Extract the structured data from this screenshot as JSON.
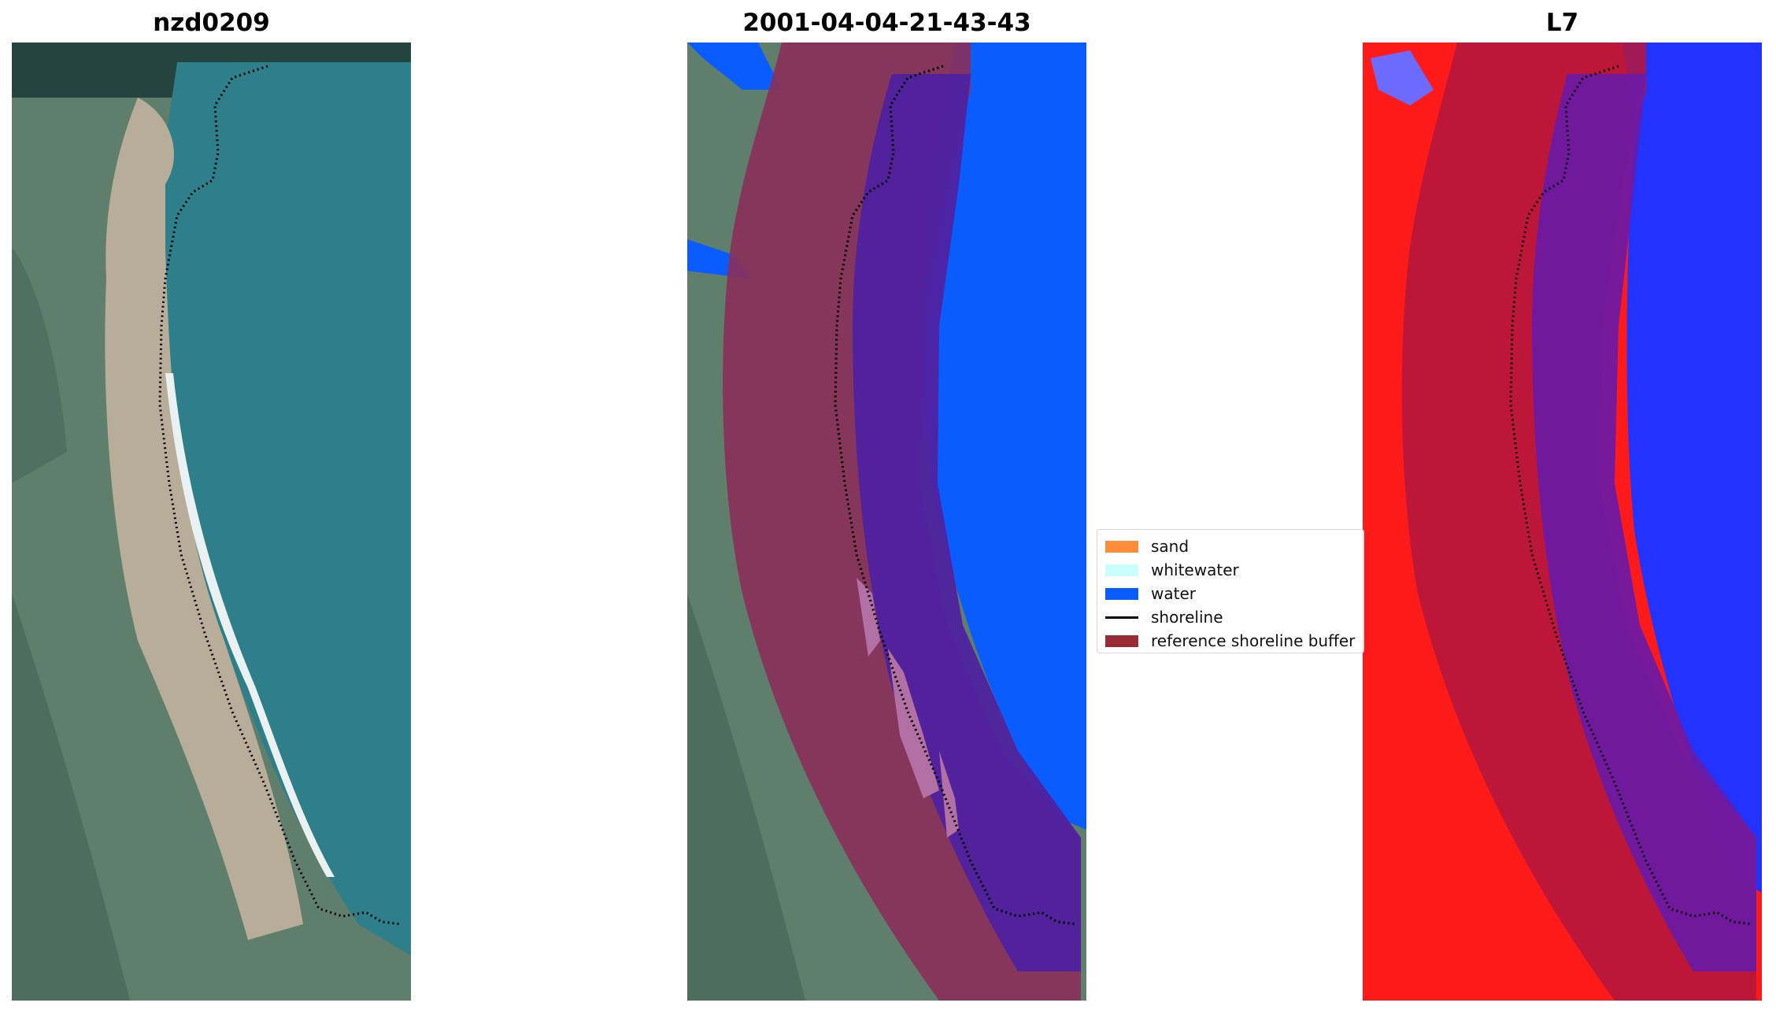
{
  "panels": [
    {
      "title": "nzd0209"
    },
    {
      "title": "2001-04-04-21-43-43"
    },
    {
      "title": "L7"
    }
  ],
  "legend": {
    "items": [
      {
        "label": "sand",
        "color": "#ff8c3a",
        "kind": "patch"
      },
      {
        "label": "whitewater",
        "color": "#c8fff9",
        "kind": "patch"
      },
      {
        "label": "water",
        "color": "#0a5cff",
        "kind": "patch"
      },
      {
        "label": "shoreline",
        "color": "#000000",
        "kind": "line"
      },
      {
        "label": "reference shoreline buffer",
        "color": "#9a2b35",
        "kind": "patch"
      }
    ]
  },
  "colors": {
    "land": "#5f7e6c",
    "sea": "#2f7f8a",
    "beach": "#b7ad98",
    "water_class": "#0a5cff",
    "buffer": "#8a2f5a",
    "buffer_over_water": "#4f22a0",
    "l7_land": "#ff1a1a",
    "l7_water": "#2233ff"
  }
}
